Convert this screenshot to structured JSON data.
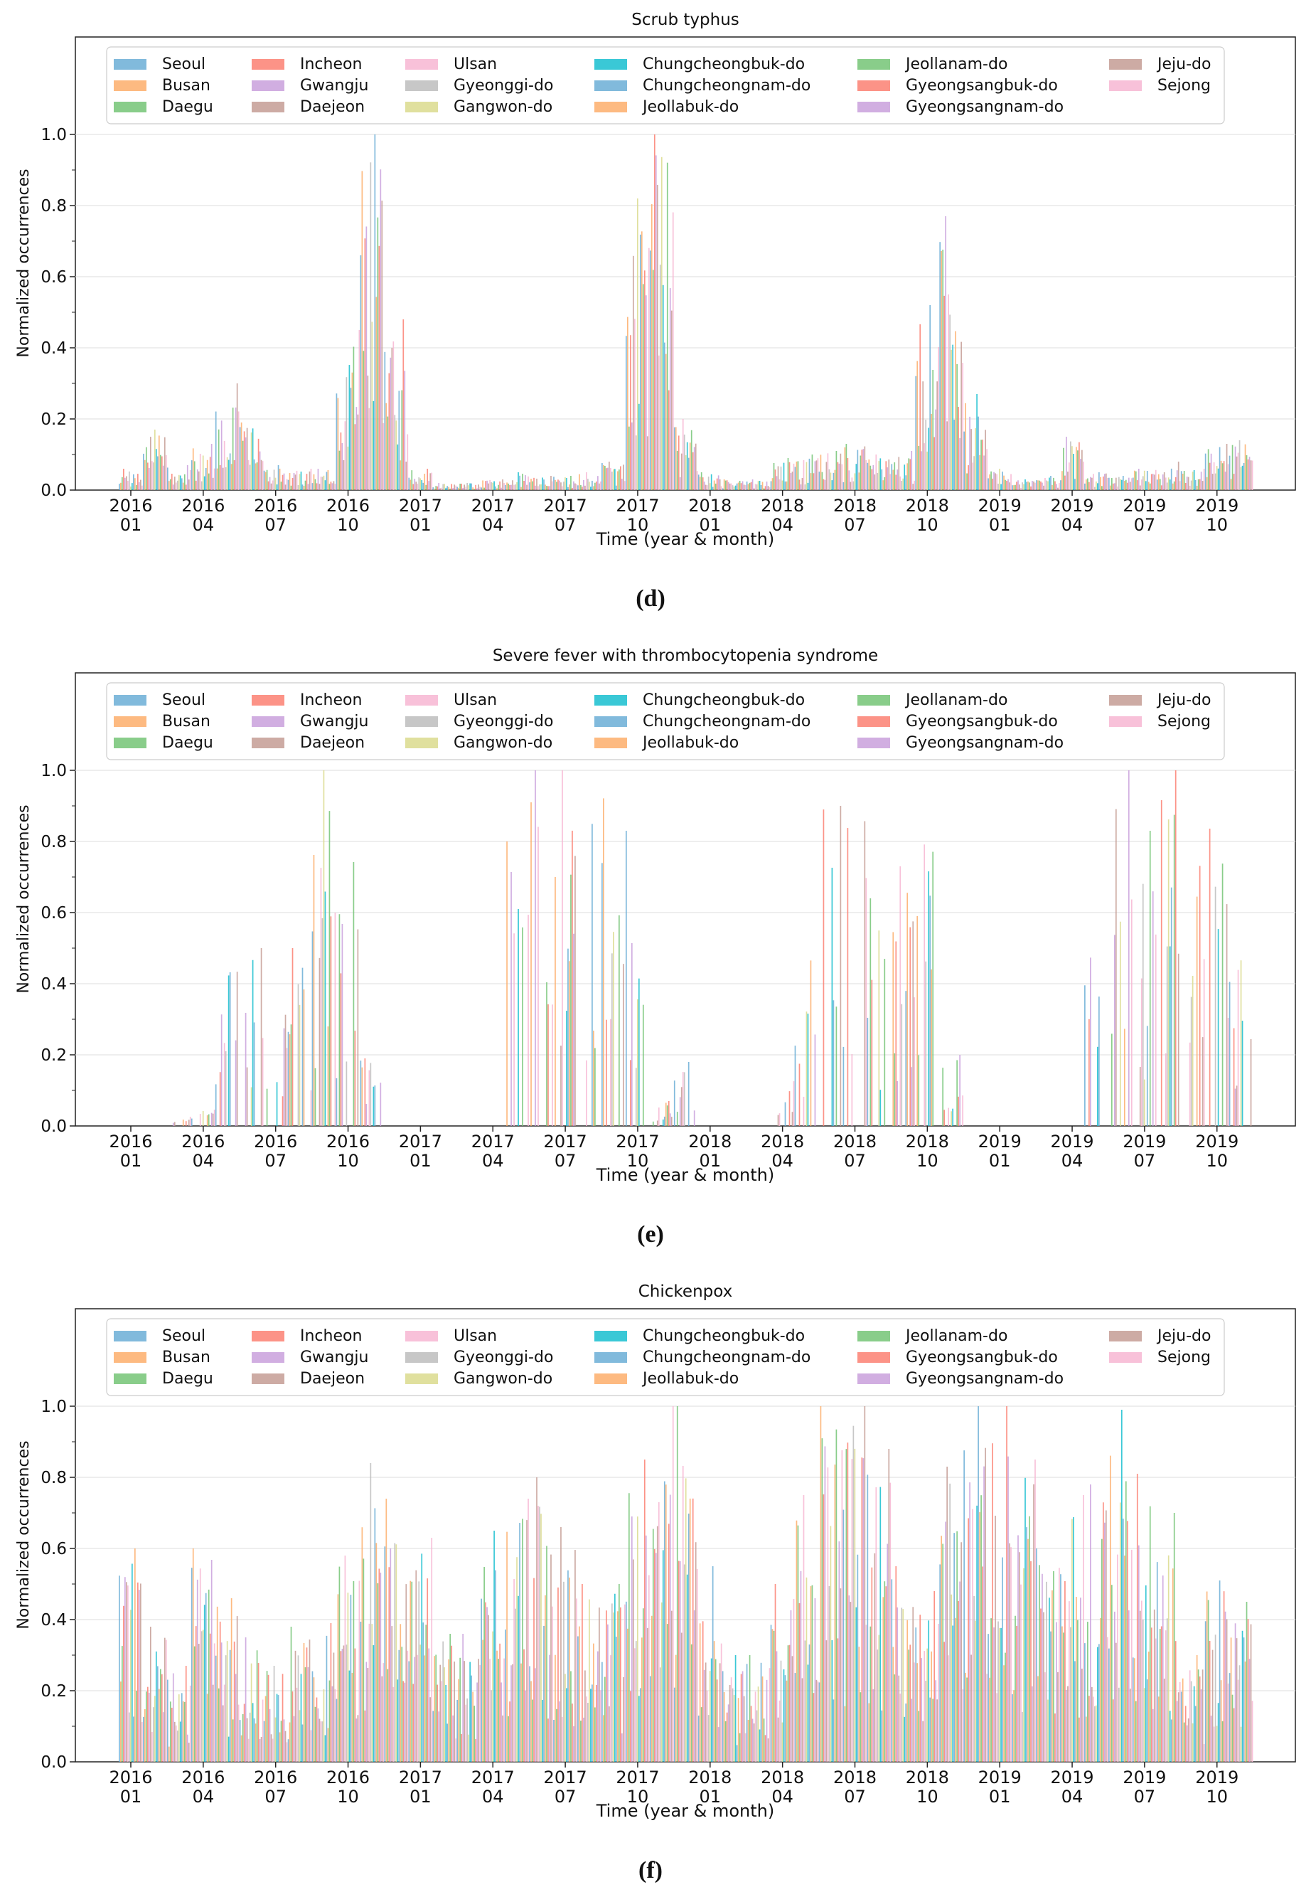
{
  "legend_regions": [
    "Seoul",
    "Busan",
    "Daegu",
    "Incheon",
    "Gwangju",
    "Daejeon",
    "Ulsan",
    "Gyeonggi-do",
    "Gangwon-do",
    "Chungcheongbuk-do",
    "Chungcheongnam-do",
    "Jeollabuk-do",
    "Jeollanam-do",
    "Gyeongsangbuk-do",
    "Gyeongsangnam-do",
    "Jeju-do",
    "Sejong"
  ],
  "region_colors": [
    "#6baed6",
    "#fdae6b",
    "#74c476",
    "#fb8072",
    "#c9a0dc",
    "#c49c94",
    "#f7b6d2",
    "#bdbdbd",
    "#dbdb8d",
    "#17becf",
    "#6baed6",
    "#fdae6b",
    "#74c476",
    "#fb8072",
    "#c9a0dc",
    "#c49c94",
    "#f7b6d2"
  ],
  "chart_data": [
    {
      "type": "bar",
      "panel_label": "(d)",
      "title": "Scrub typhus",
      "xlabel": "Time (year & month)",
      "ylabel": "Normalized occurrences",
      "ylim": [
        0,
        1.0
      ],
      "yticks": [
        "0.0",
        "0.2",
        "0.4",
        "0.6",
        "0.8",
        "1.0"
      ],
      "xtick_years": [
        "2016",
        "2016",
        "2016",
        "2016",
        "2017",
        "2017",
        "2017",
        "2017",
        "2018",
        "2018",
        "2018",
        "2018",
        "2019",
        "2019",
        "2019",
        "2019"
      ],
      "xtick_months": [
        "01",
        "04",
        "07",
        "10",
        "01",
        "04",
        "07",
        "10",
        "01",
        "04",
        "07",
        "10",
        "01",
        "04",
        "07",
        "10"
      ],
      "series_note": "17 regional series; per-month maxima shown",
      "months": [
        "2016-01",
        "2016-02",
        "2016-03",
        "2016-04",
        "2016-05",
        "2016-06",
        "2016-07",
        "2016-08",
        "2016-09",
        "2016-10",
        "2016-11",
        "2016-12",
        "2017-01",
        "2017-02",
        "2017-03",
        "2017-04",
        "2017-05",
        "2017-06",
        "2017-07",
        "2017-08",
        "2017-09",
        "2017-10",
        "2017-11",
        "2017-12",
        "2018-01",
        "2018-02",
        "2018-03",
        "2018-04",
        "2018-05",
        "2018-06",
        "2018-07",
        "2018-08",
        "2018-09",
        "2018-10",
        "2018-11",
        "2018-12",
        "2019-01",
        "2019-02",
        "2019-03",
        "2019-04",
        "2019-05",
        "2019-06",
        "2019-07",
        "2019-08",
        "2019-09",
        "2019-10",
        "2019-11"
      ],
      "values": [
        0.06,
        0.17,
        0.07,
        0.13,
        0.3,
        0.19,
        0.07,
        0.06,
        0.06,
        0.45,
        1.0,
        0.48,
        0.06,
        0.02,
        0.02,
        0.03,
        0.05,
        0.04,
        0.04,
        0.05,
        0.08,
        0.82,
        1.0,
        0.2,
        0.05,
        0.03,
        0.03,
        0.09,
        0.1,
        0.11,
        0.13,
        0.1,
        0.11,
        0.52,
        0.77,
        0.27,
        0.06,
        0.03,
        0.04,
        0.15,
        0.05,
        0.04,
        0.06,
        0.08,
        0.06,
        0.13,
        0.14
      ]
    },
    {
      "type": "bar",
      "panel_label": "(e)",
      "title": "Severe fever with thrombocytopenia syndrome",
      "xlabel": "Time (year & month)",
      "ylabel": "Normalized occurrences",
      "ylim": [
        0,
        1.0
      ],
      "yticks": [
        "0.0",
        "0.2",
        "0.4",
        "0.6",
        "0.8",
        "1.0"
      ],
      "xtick_years": [
        "2016",
        "2016",
        "2016",
        "2016",
        "2017",
        "2017",
        "2017",
        "2017",
        "2018",
        "2018",
        "2018",
        "2018",
        "2019",
        "2019",
        "2019",
        "2019"
      ],
      "xtick_months": [
        "01",
        "04",
        "07",
        "10",
        "01",
        "04",
        "07",
        "10",
        "01",
        "04",
        "07",
        "10",
        "01",
        "04",
        "07",
        "10"
      ],
      "series_note": "17 regional series; per-month maxima shown",
      "months": [
        "2016-01",
        "2016-02",
        "2016-03",
        "2016-04",
        "2016-05",
        "2016-06",
        "2016-07",
        "2016-08",
        "2016-09",
        "2016-10",
        "2016-11",
        "2016-12",
        "2017-01",
        "2017-02",
        "2017-03",
        "2017-04",
        "2017-05",
        "2017-06",
        "2017-07",
        "2017-08",
        "2017-09",
        "2017-10",
        "2017-11",
        "2017-12",
        "2018-01",
        "2018-02",
        "2018-03",
        "2018-04",
        "2018-05",
        "2018-06",
        "2018-07",
        "2018-08",
        "2018-09",
        "2018-10",
        "2018-11",
        "2018-12",
        "2019-01",
        "2019-02",
        "2019-03",
        "2019-04",
        "2019-05",
        "2019-06",
        "2019-07",
        "2019-08",
        "2019-09",
        "2019-10",
        "2019-11"
      ],
      "values": [
        0,
        0,
        0.05,
        0.05,
        0.5,
        0.5,
        0.5,
        0.5,
        1.0,
        0.82,
        0.2,
        0,
        0,
        0,
        0,
        0,
        0.8,
        1.0,
        1.0,
        1.0,
        1.0,
        0.83,
        0.07,
        0.18,
        0,
        0,
        0,
        0.14,
        0.5,
        1.0,
        1.0,
        0.64,
        0.73,
        1.0,
        0.2,
        0,
        0,
        0,
        0,
        0,
        0.5,
        1.0,
        0.83,
        1.0,
        1.0,
        1.0,
        0.5
      ]
    },
    {
      "type": "bar",
      "panel_label": "(f)",
      "title": "Chickenpox",
      "xlabel": "Time (year & month)",
      "ylabel": "Normalized occurrences",
      "ylim": [
        0,
        1.0
      ],
      "yticks": [
        "0.0",
        "0.2",
        "0.4",
        "0.6",
        "0.8",
        "1.0"
      ],
      "xtick_years": [
        "2016",
        "2016",
        "2016",
        "2016",
        "2017",
        "2017",
        "2017",
        "2017",
        "2018",
        "2018",
        "2018",
        "2018",
        "2019",
        "2019",
        "2019",
        "2019"
      ],
      "xtick_months": [
        "01",
        "04",
        "07",
        "10",
        "01",
        "04",
        "07",
        "10",
        "01",
        "04",
        "07",
        "10",
        "01",
        "04",
        "07",
        "10"
      ],
      "series_note": "17 regional series; per-month maxima shown",
      "months": [
        "2016-01",
        "2016-02",
        "2016-03",
        "2016-04",
        "2016-05",
        "2016-06",
        "2016-07",
        "2016-08",
        "2016-09",
        "2016-10",
        "2016-11",
        "2016-12",
        "2017-01",
        "2017-02",
        "2017-03",
        "2017-04",
        "2017-05",
        "2017-06",
        "2017-07",
        "2017-08",
        "2017-09",
        "2017-10",
        "2017-11",
        "2017-12",
        "2018-01",
        "2018-02",
        "2018-03",
        "2018-04",
        "2018-05",
        "2018-06",
        "2018-07",
        "2018-08",
        "2018-09",
        "2018-10",
        "2018-11",
        "2018-12",
        "2019-01",
        "2019-02",
        "2019-03",
        "2019-04",
        "2019-05",
        "2019-06",
        "2019-07",
        "2019-08",
        "2019-09",
        "2019-10",
        "2019-11"
      ],
      "values": [
        0.6,
        0.38,
        0.27,
        0.6,
        0.46,
        0.35,
        0.27,
        0.38,
        0.39,
        0.58,
        0.84,
        0.74,
        0.63,
        0.36,
        0.36,
        0.65,
        0.74,
        0.8,
        0.66,
        0.5,
        0.5,
        0.85,
        1.0,
        1.0,
        0.55,
        0.3,
        0.3,
        0.5,
        0.75,
        1.0,
        1.0,
        0.88,
        0.55,
        0.48,
        0.83,
        1.0,
        1.0,
        0.85,
        0.6,
        0.75,
        0.78,
        0.99,
        0.81,
        0.7,
        0.3,
        0.51,
        0.45
      ]
    }
  ]
}
